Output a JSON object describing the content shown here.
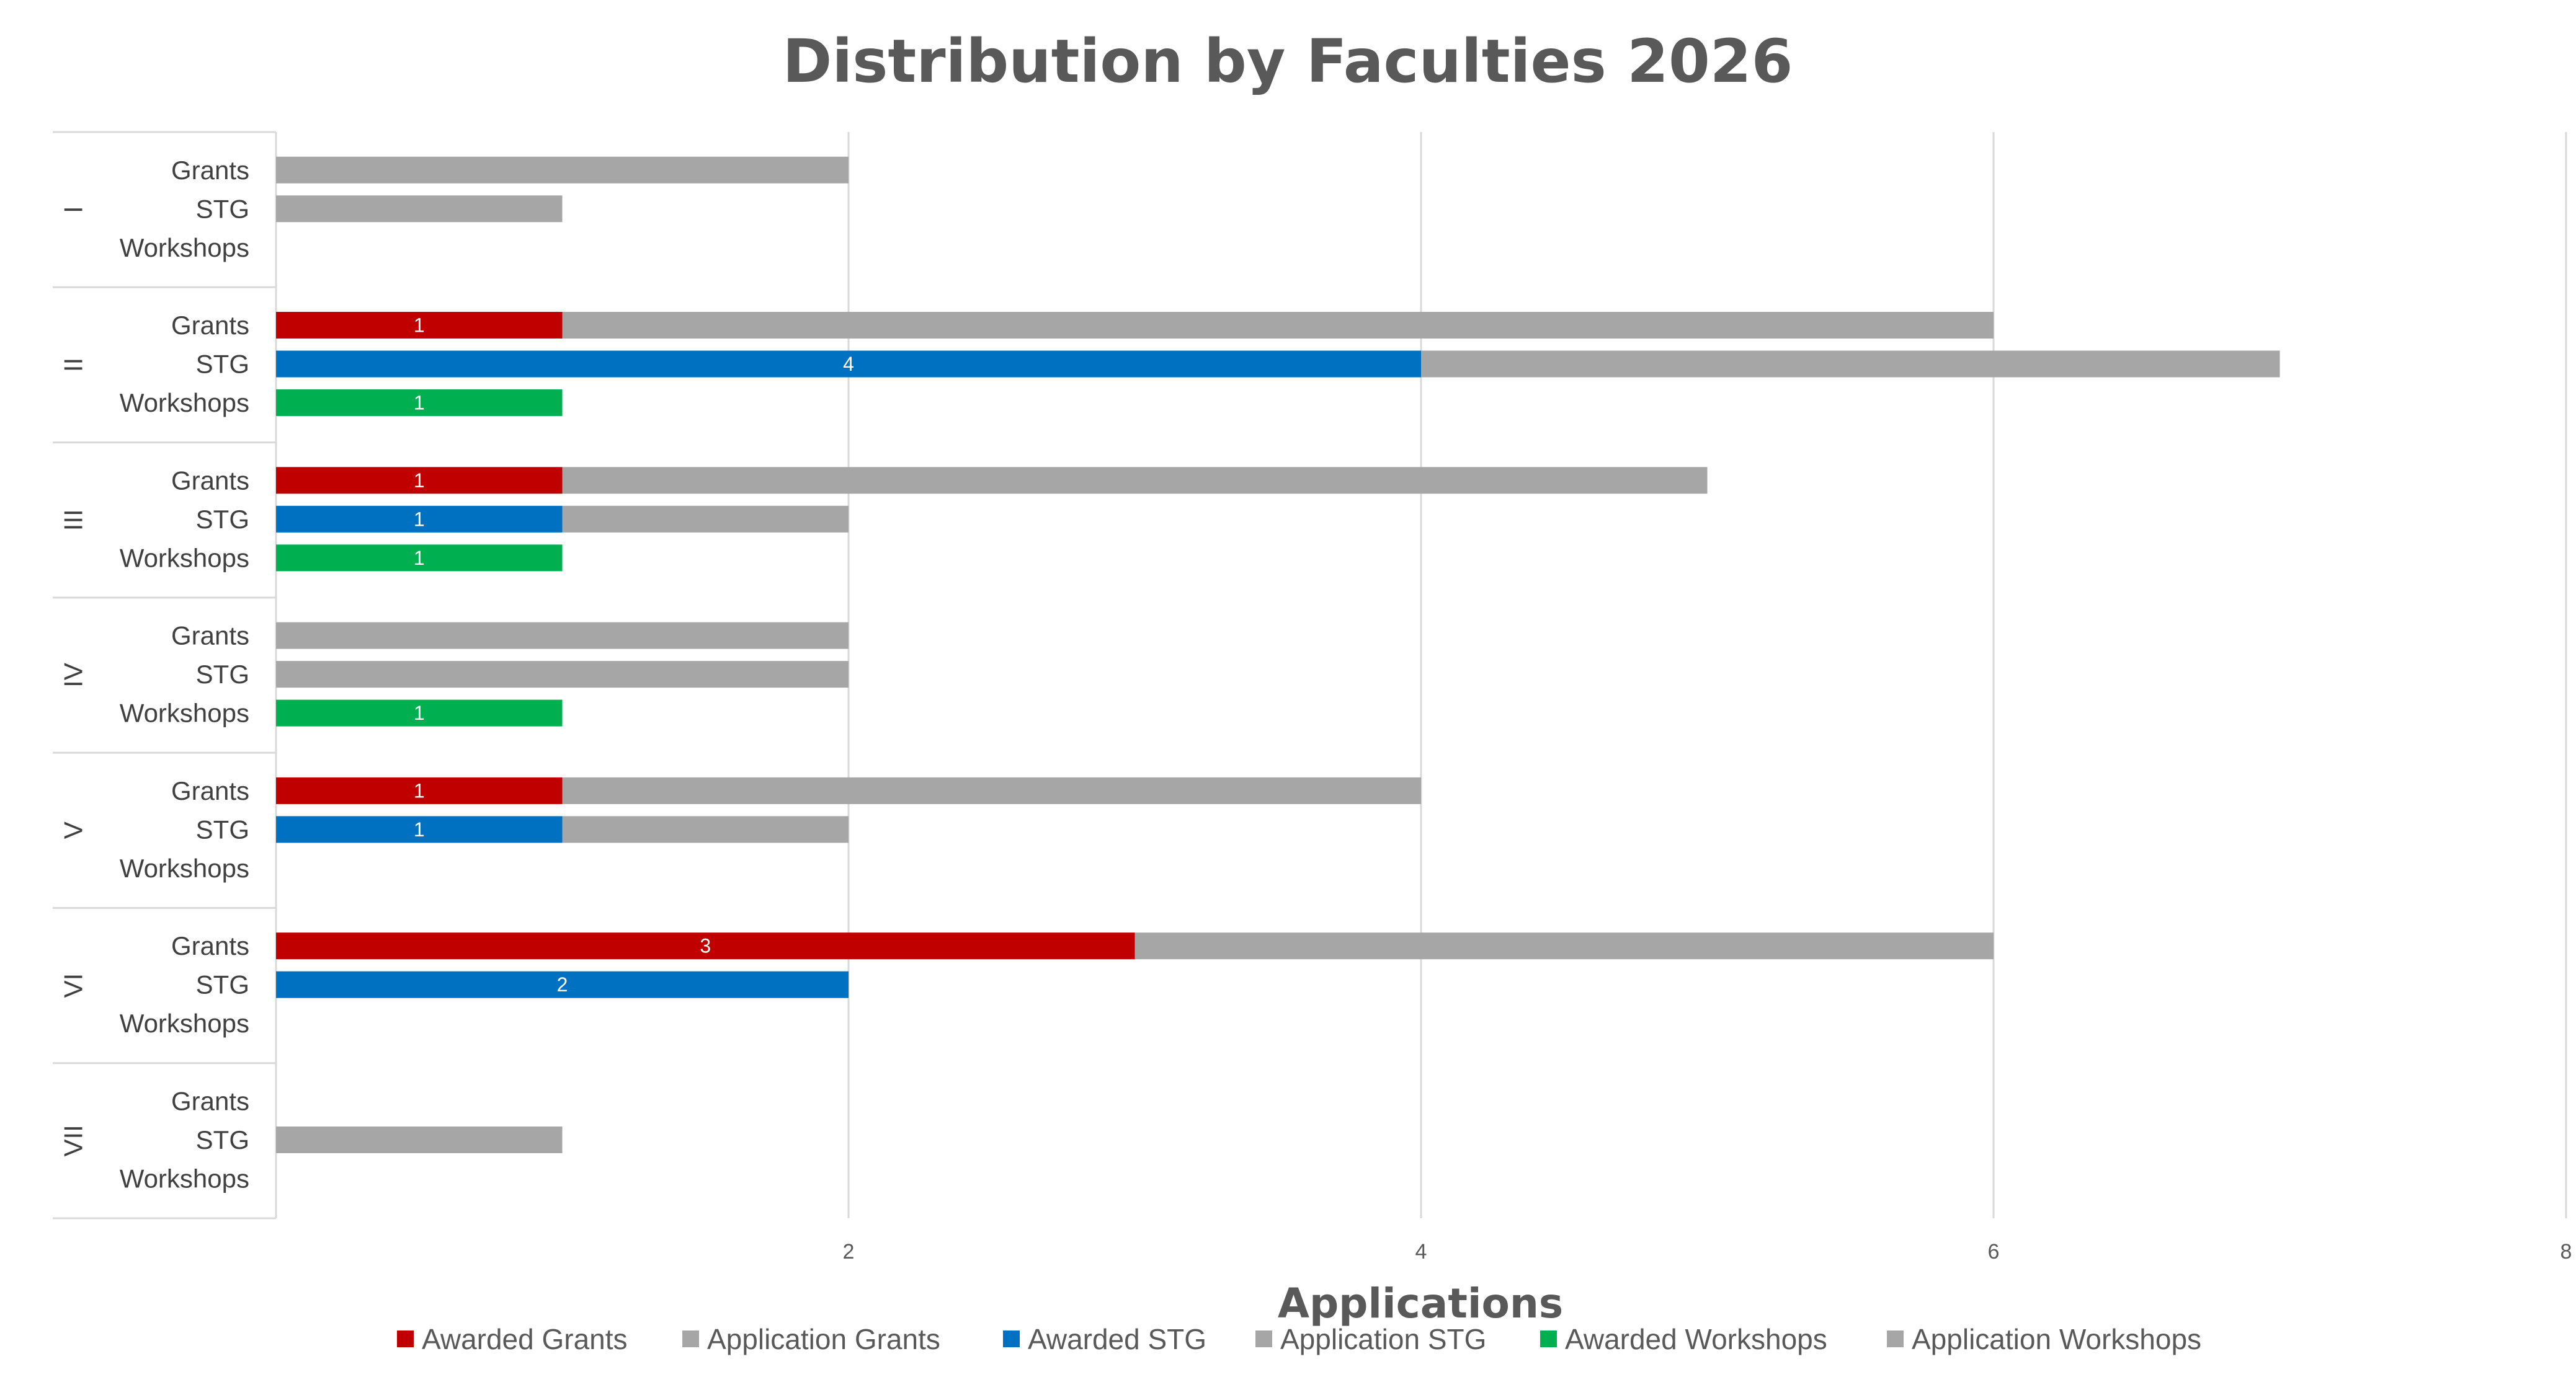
{
  "chart_data": {
    "type": "bar",
    "orientation": "horizontal",
    "stacked": true,
    "title": "Distribution by Faculties 2026",
    "xlabel": "Applications",
    "ylabel": "",
    "xlim": [
      0,
      8
    ],
    "x_ticks": [
      2,
      4,
      6,
      8
    ],
    "grid": true,
    "legend_position": "bottom",
    "groups": [
      "I",
      "II",
      "III",
      "IV",
      "V",
      "VI",
      "VII"
    ],
    "subcategories": [
      "Grants",
      "STG",
      "Workshops"
    ],
    "colors": {
      "awarded_grants": "#c00000",
      "awarded_stg": "#0070c0",
      "awarded_workshops": "#00b050",
      "application": "#a6a6a6"
    },
    "series": [
      {
        "name": "Awarded Grants",
        "subcategory": "Grants",
        "kind": "awarded",
        "color": "#c00000",
        "values": [
          0,
          1,
          1,
          0,
          1,
          3,
          0
        ]
      },
      {
        "name": "Application Grants",
        "subcategory": "Grants",
        "kind": "application",
        "color": "#a6a6a6",
        "values": [
          2,
          5,
          4,
          2,
          3,
          3,
          0
        ]
      },
      {
        "name": "Awarded STG",
        "subcategory": "STG",
        "kind": "awarded",
        "color": "#0070c0",
        "values": [
          0,
          4,
          1,
          0,
          1,
          2,
          0
        ]
      },
      {
        "name": "Application STG",
        "subcategory": "STG",
        "kind": "application",
        "color": "#a6a6a6",
        "values": [
          1,
          3,
          1,
          2,
          1,
          0,
          1
        ]
      },
      {
        "name": "Awarded Workshops",
        "subcategory": "Workshops",
        "kind": "awarded",
        "color": "#00b050",
        "values": [
          0,
          1,
          1,
          1,
          0,
          0,
          0
        ]
      },
      {
        "name": "Application Workshops",
        "subcategory": "Workshops",
        "kind": "application",
        "color": "#a6a6a6",
        "values": [
          0,
          0,
          0,
          0,
          0,
          0,
          0
        ]
      }
    ]
  }
}
